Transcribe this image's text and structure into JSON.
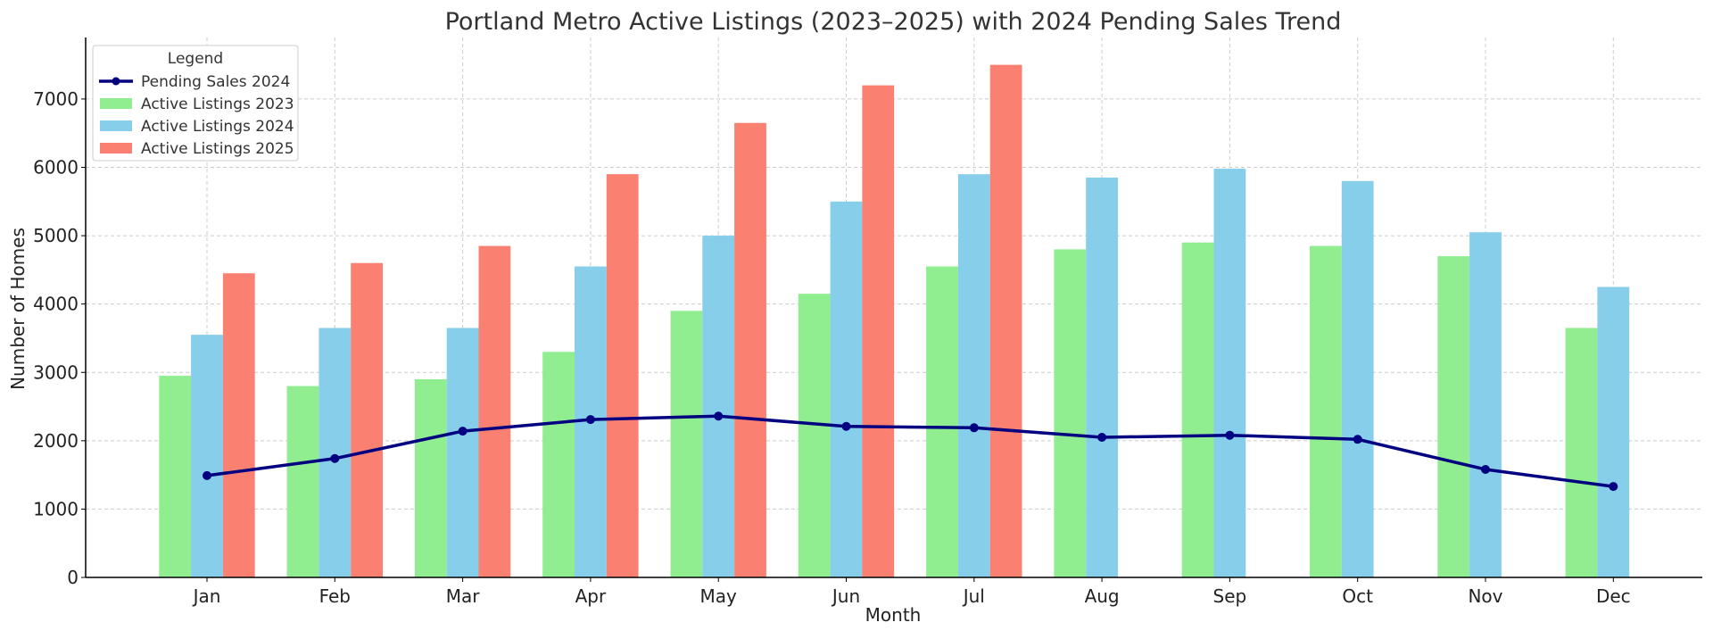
{
  "chart_data": {
    "type": "bar",
    "title": "Portland Metro Active Listings (2023–2025) with 2024 Pending Sales Trend",
    "xlabel": "Month",
    "ylabel": "Number of Homes",
    "ylim": [
      0,
      7900
    ],
    "yticks": [
      "0",
      "1000",
      "2000",
      "3000",
      "4000",
      "5000",
      "6000",
      "7000"
    ],
    "ytick_values": [
      0,
      1000,
      2000,
      3000,
      4000,
      5000,
      6000,
      7000
    ],
    "grid": true,
    "categories": [
      "Jan",
      "Feb",
      "Mar",
      "Apr",
      "May",
      "Jun",
      "Jul",
      "Aug",
      "Sep",
      "Oct",
      "Nov",
      "Dec"
    ],
    "series": [
      {
        "name": "Active Listings 2023",
        "type": "bar",
        "color": "#90ee90",
        "values": [
          2950,
          2800,
          2900,
          3300,
          3900,
          4150,
          4550,
          4800,
          4900,
          4850,
          4700,
          3650
        ]
      },
      {
        "name": "Active Listings 2024",
        "type": "bar",
        "color": "#87ceeb",
        "values": [
          3550,
          3650,
          3650,
          4550,
          5000,
          5500,
          5900,
          5850,
          5980,
          5800,
          5050,
          4250
        ]
      },
      {
        "name": "Active Listings 2025",
        "type": "bar",
        "color": "#fa8072",
        "values": [
          4450,
          4600,
          4850,
          5900,
          6650,
          7200,
          7500,
          null,
          null,
          null,
          null,
          null
        ]
      },
      {
        "name": "Pending Sales 2024",
        "type": "line",
        "color": "#000080",
        "values": [
          1490,
          1740,
          2140,
          2310,
          2360,
          2210,
          2190,
          2050,
          2080,
          2020,
          1580,
          1330
        ]
      }
    ],
    "legend": {
      "title": "Legend",
      "placement": "top-left",
      "order": [
        "Pending Sales 2024",
        "Active Listings 2023",
        "Active Listings 2024",
        "Active Listings 2025"
      ]
    }
  }
}
